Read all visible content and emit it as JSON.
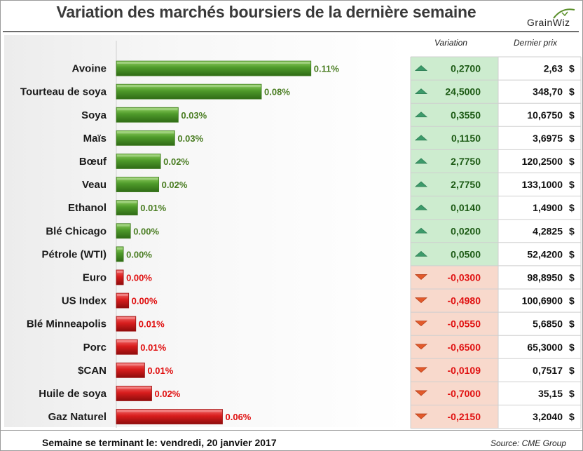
{
  "header": {
    "title": "Variation des marchés boursiers de la dernière semaine",
    "logo_text": "GrainWiz"
  },
  "table": {
    "col_variation": "Variation",
    "col_price": "Dernier prix",
    "currency": "$"
  },
  "colors": {
    "up_bar": "#4e9a2a",
    "down_bar": "#d81d1d",
    "up_text": "#4a7d22",
    "down_text": "#e01010",
    "up_cell": "#cdeccf",
    "down_cell": "#f8d9cc"
  },
  "chart_data": {
    "type": "bar",
    "orientation": "horizontal",
    "categories": [
      "Avoine",
      "Tourteau de soya",
      "Soya",
      "Maïs",
      "Bœuf",
      "Veau",
      "Ethanol",
      "Blé Chicago",
      "Pétrole (WTI)",
      "Euro",
      "US Index",
      "Blé Minneapolis",
      "Porc",
      "$CAN",
      "Huile de soya",
      "Gaz Naturel"
    ],
    "values": [
      0.11,
      0.08,
      0.03,
      0.03,
      0.02,
      0.02,
      0.01,
      0.0,
      0.0,
      0.0,
      0.0,
      0.01,
      0.01,
      0.01,
      0.02,
      0.06
    ],
    "value_labels": [
      "0.11%",
      "0.08%",
      "0.03%",
      "0.03%",
      "0.02%",
      "0.02%",
      "0.01%",
      "0.00%",
      "0.00%",
      "0.00%",
      "0.00%",
      "0.01%",
      "0.01%",
      "0.01%",
      "0.02%",
      "0.06%"
    ],
    "direction": [
      "up",
      "up",
      "up",
      "up",
      "up",
      "up",
      "up",
      "up",
      "up",
      "down",
      "down",
      "down",
      "down",
      "down",
      "down",
      "down"
    ],
    "variation": [
      "0,2700",
      "24,5000",
      "0,3550",
      "0,1150",
      "2,7750",
      "2,7750",
      "0,0140",
      "0,0200",
      "0,0500",
      "-0,0300",
      "-0,4980",
      "-0,0550",
      "-0,6500",
      "-0,0109",
      "-0,7000",
      "-0,2150"
    ],
    "last_price": [
      "2,63",
      "348,70",
      "10,6750",
      "3,6975",
      "120,2500",
      "133,1000",
      "1,4900",
      "4,2825",
      "52,4200",
      "98,8950",
      "100,6900",
      "5,6850",
      "65,3000",
      "0,7517",
      "35,15",
      "3,2040"
    ],
    "bar_scale": [
      0.11,
      0.082,
      0.035,
      0.033,
      0.025,
      0.024,
      0.012,
      0.008,
      0.004,
      0.004,
      0.007,
      0.011,
      0.012,
      0.016,
      0.02,
      0.06
    ],
    "xlim": [
      0,
      0.16
    ],
    "title": "Variation des marchés boursiers de la dernière semaine",
    "xlabel": "",
    "ylabel": ""
  },
  "footer": {
    "week_label": "Semaine se terminant le: vendredi, 20 janvier 2017",
    "source": "Source: CME Group"
  }
}
